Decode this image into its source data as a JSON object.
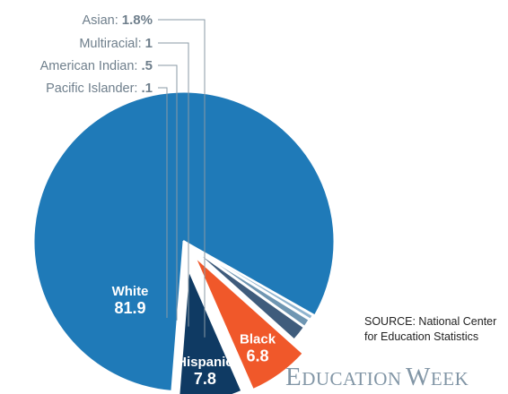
{
  "chart_data": {
    "type": "pie",
    "slices": [
      {
        "label": "White",
        "value": 81.9,
        "display": "81.9",
        "color": "#1f7ab8"
      },
      {
        "label": "Pacific Islander:",
        "value": 0.1,
        "display": ".1",
        "color": "#1f7ab8"
      },
      {
        "label": "American Indian:",
        "value": 0.5,
        "display": ".5",
        "color": "#8fb4cf"
      },
      {
        "label": "Multiracial:",
        "value": 1,
        "display": "1",
        "color": "#6f96b2"
      },
      {
        "label": "Asian:",
        "value": 1.8,
        "display": "1.8%",
        "color": "#3f5c7c"
      },
      {
        "label": "Black",
        "value": 6.8,
        "display": "6.8",
        "color": "#f0582a"
      },
      {
        "label": "Hispanic",
        "value": 7.8,
        "display": "7.8",
        "color": "#0f3a63"
      }
    ]
  },
  "source": {
    "line1": "SOURCE: National Center",
    "line2": "for Education Statistics"
  },
  "brand": {
    "first_big": "E",
    "first_small": "DUCATION",
    "second_big": "W",
    "second_small": "EEK"
  }
}
